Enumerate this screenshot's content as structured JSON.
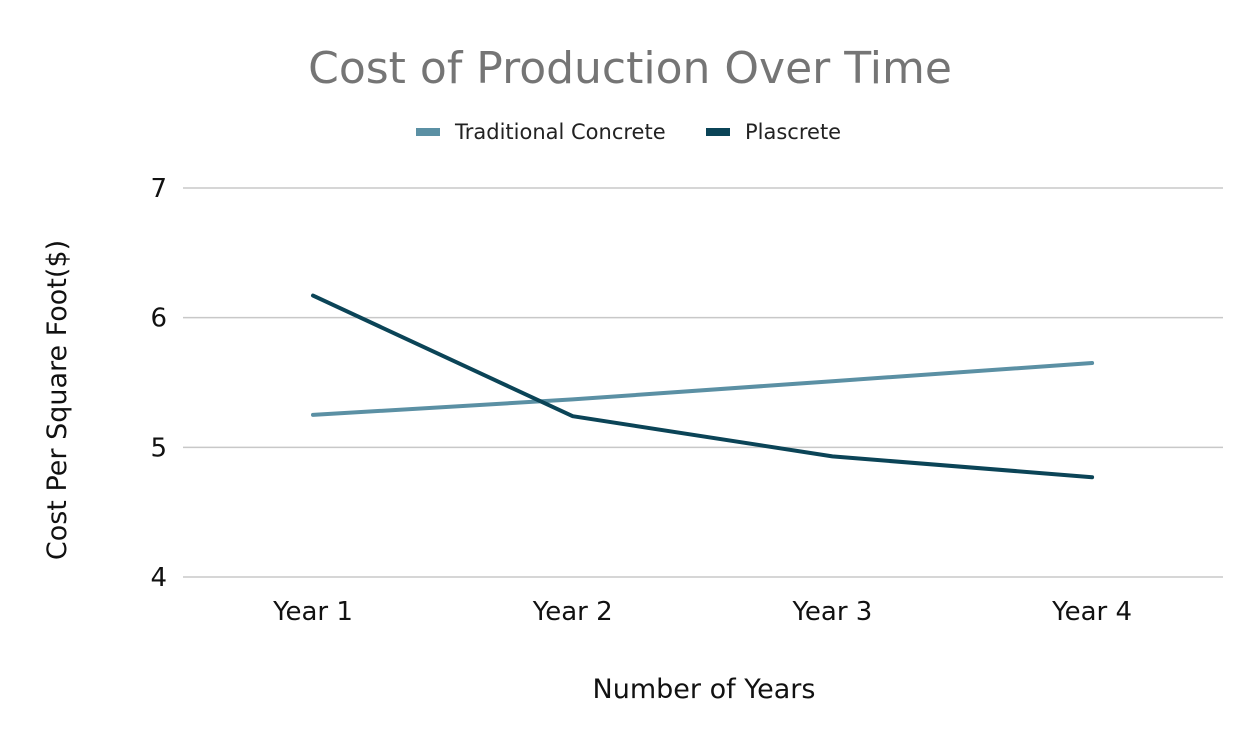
{
  "chart_data": {
    "type": "line",
    "title": "Cost of Production Over Time",
    "xlabel": "Number of Years",
    "ylabel": "Cost Per Square Foot($)",
    "categories": [
      "Year 1",
      "Year 2",
      "Year 3",
      "Year 4"
    ],
    "ylim": [
      4,
      7
    ],
    "yticks": [
      "4",
      "5",
      "6",
      "7"
    ],
    "grid": true,
    "legend_position": "top",
    "series": [
      {
        "name": "Traditional Concrete",
        "color": "#5b90a4",
        "values": [
          5.25,
          5.37,
          5.51,
          5.65
        ]
      },
      {
        "name": "Plascrete",
        "color": "#0b4457",
        "values": [
          6.17,
          5.24,
          4.93,
          4.77
        ]
      }
    ]
  }
}
